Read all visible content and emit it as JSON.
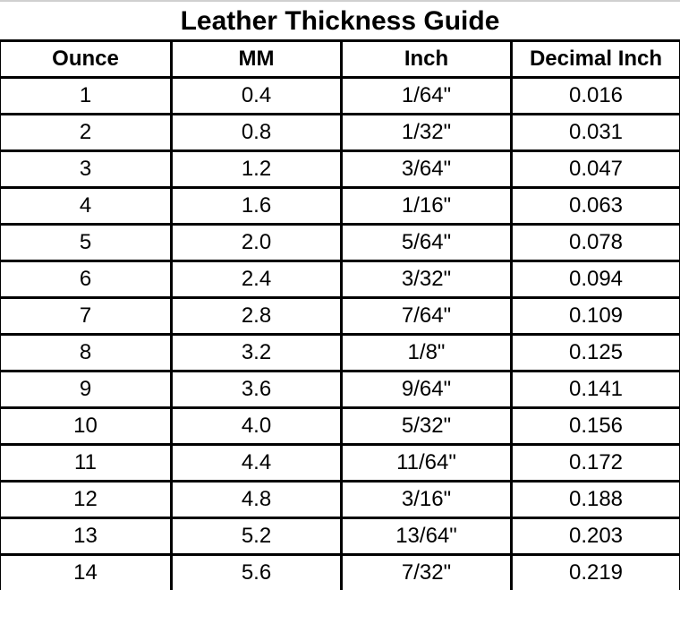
{
  "title": "Leather Thickness Guide",
  "headers": [
    "Ounce",
    "MM",
    "Inch",
    "Decimal Inch"
  ],
  "rows": [
    [
      "1",
      "0.4",
      "1/64\"",
      "0.016"
    ],
    [
      "2",
      "0.8",
      "1/32\"",
      "0.031"
    ],
    [
      "3",
      "1.2",
      "3/64\"",
      "0.047"
    ],
    [
      "4",
      "1.6",
      "1/16\"",
      "0.063"
    ],
    [
      "5",
      "2.0",
      "5/64\"",
      "0.078"
    ],
    [
      "6",
      "2.4",
      "3/32\"",
      "0.094"
    ],
    [
      "7",
      "2.8",
      "7/64\"",
      "0.109"
    ],
    [
      "8",
      "3.2",
      "1/8\"",
      "0.125"
    ],
    [
      "9",
      "3.6",
      "9/64\"",
      "0.141"
    ],
    [
      "10",
      "4.0",
      "5/32\"",
      "0.156"
    ],
    [
      "11",
      "4.4",
      "11/64\"",
      "0.172"
    ],
    [
      "12",
      "4.8",
      "3/16\"",
      "0.188"
    ],
    [
      "13",
      "5.2",
      "13/64\"",
      "0.203"
    ],
    [
      "14",
      "5.6",
      "7/32\"",
      "0.219"
    ]
  ]
}
